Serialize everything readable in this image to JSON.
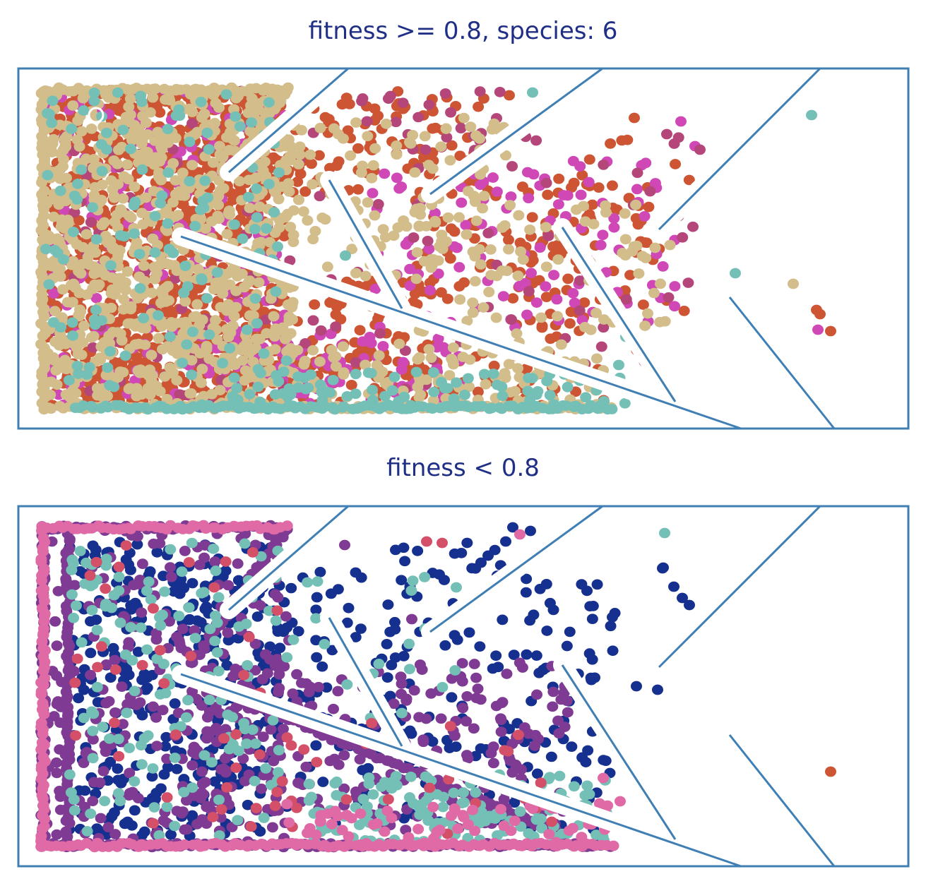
{
  "chart_data": [
    {
      "type": "scatter",
      "title": "fitness >= 0.8, species: 6",
      "colors": {
        "frame": "#3f7fb4",
        "walls": "#3f7fb4",
        "start": "#ffffff"
      },
      "xlim": [
        0,
        1260
      ],
      "ylim": [
        0,
        510
      ],
      "walls": [
        [
          [
            467,
            0
          ],
          [
            298,
            147
          ]
        ],
        [
          [
            827,
            0
          ],
          [
            583,
            178
          ]
        ],
        [
          [
            1135,
            0
          ],
          [
            907,
            228
          ]
        ],
        [
          [
            230,
            238
          ],
          [
            1023,
            510
          ]
        ],
        [
          [
            440,
            158
          ],
          [
            543,
            340
          ]
        ],
        [
          [
            770,
            225
          ],
          [
            930,
            472
          ]
        ],
        [
          [
            1007,
            324
          ],
          [
            1155,
            510
          ]
        ]
      ],
      "start": [
        110,
        66
      ],
      "series": [
        {
          "color": "#cd5534",
          "regions": [
            {
              "x": [
                35,
                380
              ],
              "y": [
                30,
                480
              ],
              "count": 900
            },
            {
              "x": [
                260,
                660
              ],
              "y": [
                30,
                180
              ],
              "count": 140
            },
            {
              "x": [
                560,
                900
              ],
              "y": [
                150,
                330
              ],
              "count": 90
            },
            {
              "x": [
                700,
                960
              ],
              "y": [
                100,
                400
              ],
              "count": 50
            },
            {
              "x": [
                35,
                830
              ],
              "y": [
                400,
                480
              ],
              "count": 140
            },
            {
              "x": [
                300,
                600
              ],
              "y": [
                300,
                440
              ],
              "count": 120
            }
          ],
          "points": [
            [
              695,
              38
            ],
            [
              872,
              70
            ],
            [
              1135,
              348
            ],
            [
              1150,
              372
            ],
            [
              1130,
              342
            ],
            [
              925,
              207
            ]
          ]
        },
        {
          "color": "#cf48b6",
          "regions": [
            {
              "x": [
                35,
                380
              ],
              "y": [
                30,
                480
              ],
              "count": 200
            },
            {
              "x": [
                500,
                930
              ],
              "y": [
                130,
                370
              ],
              "count": 110
            },
            {
              "x": [
                250,
                640
              ],
              "y": [
                360,
                480
              ],
              "count": 80
            }
          ],
          "points": [
            [
              1132,
              370
            ],
            [
              958,
              110
            ],
            [
              938,
              75
            ]
          ]
        },
        {
          "color": "#b5467a",
          "regions": [
            {
              "x": [
                35,
                380
              ],
              "y": [
                30,
                480
              ],
              "count": 80
            },
            {
              "x": [
                380,
                960
              ],
              "y": [
                80,
                460
              ],
              "count": 60
            },
            {
              "x": [
                480,
                700
              ],
              "y": [
                30,
                120
              ],
              "count": 25
            }
          ],
          "points": [
            [
              965,
              115
            ],
            [
              918,
              93
            ]
          ]
        },
        {
          "color": "#d2bd8b",
          "regions": [
            {
              "x": [
                35,
                390
              ],
              "y": [
                30,
                480
              ],
              "count": 850
            },
            {
              "x": [
                380,
                700
              ],
              "y": [
                70,
                300
              ],
              "count": 120
            },
            {
              "x": [
                560,
                930
              ],
              "y": [
                190,
                390
              ],
              "count": 70
            },
            {
              "x": [
                300,
                830
              ],
              "y": [
                390,
                480
              ],
              "count": 120
            }
          ],
          "edge_runs": [
            [
              [
                35,
                30
              ],
              [
                380,
                30
              ]
            ],
            [
              [
                35,
                30
              ],
              [
                35,
                480
              ]
            ],
            [
              [
                35,
                480
              ],
              [
                840,
                480
              ]
            ],
            [
              [
                380,
                30
              ],
              [
                298,
                147
              ]
            ]
          ],
          "points": [
            [
              1097,
              305
            ],
            [
              790,
              200
            ],
            [
              800,
              195
            ]
          ]
        },
        {
          "color": "#74c0b7",
          "regions": [
            {
              "x": [
                35,
                380
              ],
              "y": [
                30,
                480
              ],
              "count": 140
            },
            {
              "x": [
                300,
                860
              ],
              "y": [
                430,
                480
              ],
              "count": 80
            }
          ],
          "edge_runs": [
            [
              [
                80,
                480
              ],
              [
                840,
                480
              ]
            ]
          ],
          "points": [
            [
              1123,
              66
            ],
            [
              728,
              34
            ],
            [
              850,
              420
            ],
            [
              1015,
              290
            ],
            [
              463,
              265
            ],
            [
              860,
              380
            ]
          ]
        }
      ]
    },
    {
      "type": "scatter",
      "title": "fitness < 0.8",
      "colors": {
        "frame": "#3f7fb4",
        "walls": "#3f7fb4"
      },
      "xlim": [
        0,
        1260
      ],
      "ylim": [
        0,
        510
      ],
      "walls": [
        [
          [
            467,
            0
          ],
          [
            298,
            147
          ]
        ],
        [
          [
            827,
            0
          ],
          [
            583,
            178
          ]
        ],
        [
          [
            1135,
            0
          ],
          [
            907,
            228
          ]
        ],
        [
          [
            230,
            238
          ],
          [
            1023,
            510
          ]
        ],
        [
          [
            440,
            158
          ],
          [
            543,
            340
          ]
        ],
        [
          [
            770,
            225
          ],
          [
            930,
            472
          ]
        ],
        [
          [
            1007,
            324
          ],
          [
            1155,
            510
          ]
        ]
      ],
      "series": [
        {
          "color": "#15308f",
          "regions": [
            {
              "x": [
                70,
                370
              ],
              "y": [
                50,
                470
              ],
              "count": 360
            },
            {
              "x": [
                360,
                560
              ],
              "y": [
                90,
                340
              ],
              "count": 70
            },
            {
              "x": [
                380,
                840
              ],
              "y": [
                300,
                460
              ],
              "count": 80
            },
            {
              "x": [
                520,
                700
              ],
              "y": [
                40,
                320
              ],
              "count": 40
            },
            {
              "x": [
                700,
                860
              ],
              "y": [
                100,
                280
              ],
              "count": 40
            }
          ],
          "points": [
            [
              912,
              88
            ],
            [
              928,
              114
            ],
            [
              940,
              130
            ],
            [
              950,
              140
            ],
            [
              913,
              87
            ],
            [
              875,
              255
            ],
            [
              905,
              260
            ],
            [
              790,
              390
            ],
            [
              700,
              30
            ],
            [
              725,
              35
            ],
            [
              690,
              50
            ],
            [
              665,
              70
            ],
            [
              655,
              80
            ]
          ]
        },
        {
          "color": "#7f3b93",
          "regions": [
            {
              "x": [
                35,
                380
              ],
              "y": [
                30,
                480
              ],
              "count": 260
            },
            {
              "x": [
                240,
                780
              ],
              "y": [
                220,
                460
              ],
              "count": 260
            }
          ],
          "edge_runs": [
            [
              [
                35,
                30
              ],
              [
                380,
                30
              ]
            ],
            [
              [
                35,
                30
              ],
              [
                35,
                480
              ]
            ],
            [
              [
                35,
                480
              ],
              [
                840,
                480
              ]
            ],
            [
              [
                70,
                30
              ],
              [
                70,
                480
              ]
            ],
            [
              [
                230,
                238
              ],
              [
                760,
                460
              ]
            ],
            [
              [
                380,
                30
              ],
              [
                245,
                225
              ]
            ]
          ],
          "points": [
            [
              462,
              55
            ],
            [
              557,
              160
            ],
            [
              383,
              190
            ],
            [
              350,
              210
            ]
          ]
        },
        {
          "color": "#74c0b7",
          "regions": [
            {
              "x": [
                70,
                370
              ],
              "y": [
                50,
                470
              ],
              "count": 140
            },
            {
              "x": [
                400,
                840
              ],
              "y": [
                380,
                480
              ],
              "count": 150
            },
            {
              "x": [
                380,
                620
              ],
              "y": [
                100,
                300
              ],
              "count": 20
            }
          ],
          "points": [
            [
              915,
              38
            ],
            [
              620,
              115
            ]
          ]
        },
        {
          "color": "#d35068",
          "regions": [
            {
              "x": [
                70,
                380
              ],
              "y": [
                50,
                470
              ],
              "count": 40
            },
            {
              "x": [
                300,
                800
              ],
              "y": [
                300,
                470
              ],
              "count": 30
            }
          ],
          "points": [
            [
              578,
              50
            ],
            [
              600,
              52
            ]
          ]
        },
        {
          "color": "#df6aa6",
          "regions": [
            {
              "x": [
                380,
                840
              ],
              "y": [
                420,
                480
              ],
              "count": 60
            }
          ],
          "edge_runs": [
            [
              [
                35,
                30
              ],
              [
                380,
                30
              ]
            ],
            [
              [
                35,
                30
              ],
              [
                35,
                480
              ]
            ],
            [
              [
                35,
                480
              ],
              [
                840,
                480
              ]
            ]
          ],
          "points": [
            [
              828,
              385
            ],
            [
              852,
              418
            ],
            [
              710,
              40
            ]
          ]
        },
        {
          "color": "#cd5534",
          "points": [
            [
              1150,
              376
            ]
          ]
        }
      ]
    }
  ]
}
